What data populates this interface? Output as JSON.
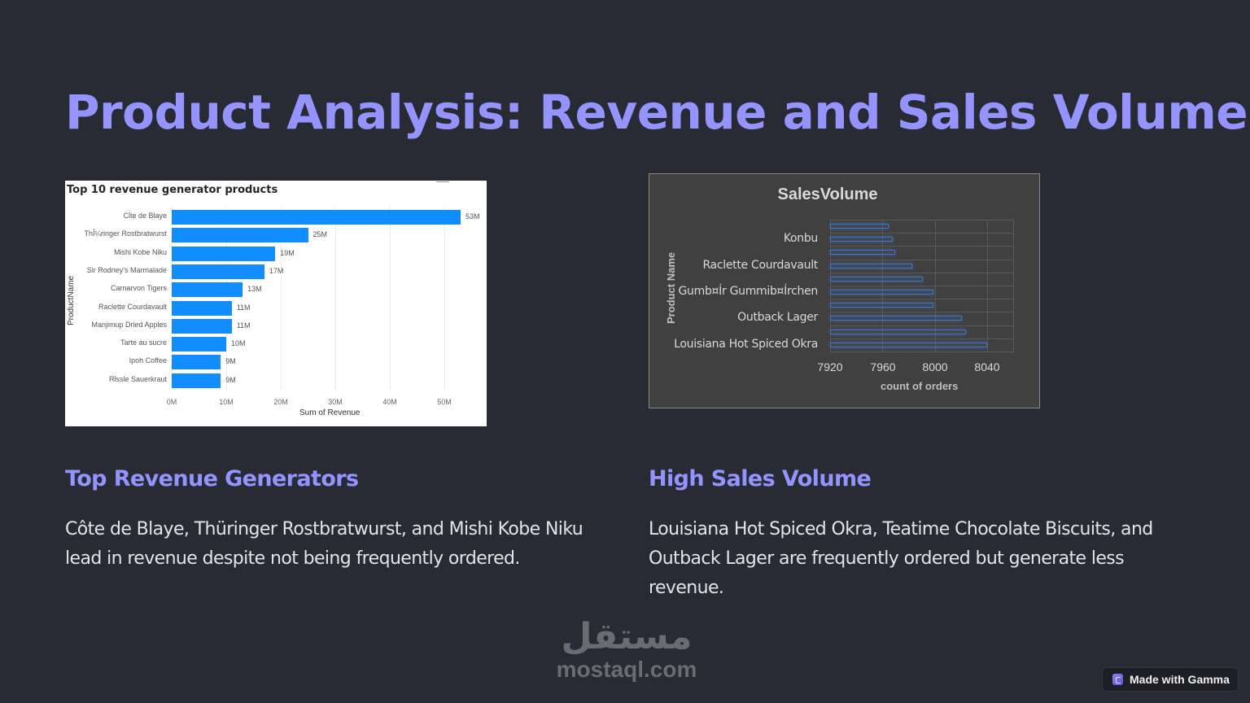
{
  "page": {
    "title": "Product Analysis: Revenue and Sales Volume"
  },
  "sections": [
    {
      "heading": "Top Revenue Generators",
      "body": "Côte de Blaye, Thüringer Rostbratwurst, and Mishi Kobe Niku lead in revenue despite not being frequently ordered."
    },
    {
      "heading": "High Sales Volume",
      "body": "Louisiana Hot Spiced Okra, Teatime Chocolate Biscuits, and Outback Lager are frequently ordered but generate less revenue."
    }
  ],
  "watermark": {
    "arabic": "مستقل",
    "latin": "mostaql.com"
  },
  "badge": {
    "label": "Made with Gamma",
    "icon": "gamma-logo-icon"
  },
  "colors": {
    "background": "#282b34",
    "accent": "#9594ff",
    "bar_revenue": "#118dff",
    "bar_volume": "#4472c4"
  },
  "chart_data": [
    {
      "type": "bar",
      "orientation": "horizontal",
      "title": "Top 10 revenue generator products",
      "xlabel": "Sum of Revenue",
      "ylabel": "ProductName",
      "categories": [
        "Cï¿½te de Blaye",
        "Thï¿½ringer Rostbratwurst",
        "Mishi Kobe Niku",
        "Sir Rodney's Marmalade",
        "Carnarvon Tigers",
        "Raclette Courdavault",
        "Manjimup Dried Apples",
        "Tarte au sucre",
        "Ipoh Coffee",
        "Rï¿½ssle Sauerkraut"
      ],
      "display_categories": [
        "Cỉte de Blaye",
        "ThỈ¼ringer Rostbratwurst",
        "Mishi Kobe Niku",
        "Sir Rodney's Marmalade",
        "Carnarvon Tigers",
        "Raclette Courdavault",
        "Manjimup Dried Apples",
        "Tarte au sucre",
        "Ipoh Coffee",
        "Rỉssle Sauerkraut"
      ],
      "values": [
        53,
        25,
        19,
        17,
        13,
        11,
        11,
        10,
        9,
        9
      ],
      "data_labels": [
        "53M",
        "25M",
        "19M",
        "17M",
        "13M",
        "11M",
        "11M",
        "10M",
        "9M",
        "9M"
      ],
      "units": "M",
      "xticks": [
        "0M",
        "10M",
        "20M",
        "30M",
        "40M",
        "50M"
      ],
      "xlim": [
        0,
        55
      ],
      "grid": "vertical dotted"
    },
    {
      "type": "bar",
      "orientation": "horizontal",
      "title": "SalesVolume",
      "xlabel": "count of orders",
      "ylabel": "Product Name",
      "categories": [
        "",
        "Konbu",
        "",
        "Raclette Courdavault",
        "",
        "Gumbär Gummibärchen",
        "",
        "Outback Lager",
        "",
        "Louisiana Hot Spiced Okra"
      ],
      "visible_tick_labels": [
        "Konbu",
        "Raclette Courdavault",
        "Gumb¤Ír Gummib¤Írchen",
        "Outback Lager",
        "Louisiana Hot Spiced Okra"
      ],
      "values": [
        7965,
        7968,
        7970,
        7983,
        7991,
        7999,
        7999,
        8021,
        8024,
        8040
      ],
      "xticks": [
        "7920",
        "7960",
        "8000",
        "8040"
      ],
      "xlim": [
        7920,
        8060
      ],
      "grid": "both"
    }
  ]
}
